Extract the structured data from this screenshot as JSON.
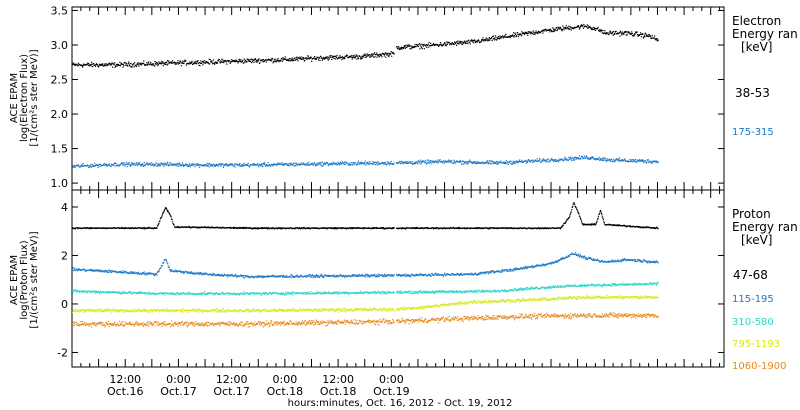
{
  "chart_data": [
    {
      "type": "scatter",
      "title": "",
      "ylabel_lines": [
        "ACE EPAM",
        "log(Electron Flux)",
        "[1/(cm²s ster MeV)]"
      ],
      "ylim": [
        0.9,
        3.55
      ],
      "yticks": [
        1.0,
        1.5,
        2.0,
        2.5,
        3.0,
        3.5
      ],
      "yticklabels": [
        "1.0",
        "1.5",
        "2.0",
        "2.5",
        "3.0",
        "3.5"
      ],
      "legend_title_lines": [
        "Electron",
        "Energy ran",
        "[keV]"
      ],
      "series": [
        {
          "name": "38-53",
          "color": "#000000",
          "noise": 0.05,
          "points": [
            [
              0,
              2.72
            ],
            [
              10,
              2.72
            ],
            [
              20,
              2.74
            ],
            [
              30,
              2.76
            ],
            [
              40,
              2.78
            ],
            [
              50,
              2.8
            ],
            [
              55,
              2.82
            ],
            [
              65,
              2.84
            ],
            [
              70,
              2.87
            ],
            [
              72.5,
              2.88
            ],
            [
              73,
              2.97
            ],
            [
              80,
              3.0
            ],
            [
              90,
              3.05
            ],
            [
              100,
              3.15
            ],
            [
              105,
              3.2
            ],
            [
              112,
              3.26
            ],
            [
              116,
              3.28
            ],
            [
              119,
              3.22
            ],
            [
              120,
              3.18
            ],
            [
              125,
              3.18
            ],
            [
              130,
              3.14
            ],
            [
              132,
              3.08
            ]
          ]
        },
        {
          "name": "175-315",
          "color": "#1a78c8",
          "noise": 0.04,
          "points": [
            [
              0,
              1.25
            ],
            [
              10,
              1.28
            ],
            [
              20,
              1.28
            ],
            [
              30,
              1.27
            ],
            [
              40,
              1.27
            ],
            [
              50,
              1.28
            ],
            [
              60,
              1.29
            ],
            [
              72.5,
              1.3
            ],
            [
              73,
              1.3
            ],
            [
              85,
              1.32
            ],
            [
              95,
              1.3
            ],
            [
              105,
              1.33
            ],
            [
              112,
              1.36
            ],
            [
              116,
              1.38
            ],
            [
              122,
              1.34
            ],
            [
              132,
              1.32
            ]
          ]
        }
      ]
    },
    {
      "type": "scatter",
      "title": "",
      "ylabel_lines": [
        "ACE EPAM",
        "log(Proton Flux)",
        "[1/(cm²s ster MeV)]"
      ],
      "ylim": [
        -2.6,
        4.7
      ],
      "yticks": [
        -2,
        0,
        2,
        4
      ],
      "yticklabels": [
        "-2",
        "0",
        "2",
        "4"
      ],
      "legend_title_lines": [
        "Proton",
        "Energy ran",
        "[keV]"
      ],
      "series": [
        {
          "name": "47-68",
          "color": "#000000",
          "noise": 0.04,
          "points": [
            [
              0,
              3.15
            ],
            [
              19,
              3.15
            ],
            [
              20,
              3.6
            ],
            [
              21,
              4.0
            ],
            [
              22,
              3.7
            ],
            [
              23,
              3.2
            ],
            [
              40,
              3.15
            ],
            [
              72.5,
              3.15
            ],
            [
              73,
              3.15
            ],
            [
              110,
              3.15
            ],
            [
              112,
              3.6
            ],
            [
              113,
              4.2
            ],
            [
              114,
              3.8
            ],
            [
              115,
              3.3
            ],
            [
              118,
              3.3
            ],
            [
              119,
              3.9
            ],
            [
              120,
              3.3
            ],
            [
              132,
              3.15
            ]
          ]
        },
        {
          "name": "115-195",
          "color": "#1a78c8",
          "noise": 0.08,
          "points": [
            [
              0,
              1.45
            ],
            [
              10,
              1.35
            ],
            [
              19,
              1.25
            ],
            [
              21,
              1.9
            ],
            [
              22,
              1.4
            ],
            [
              30,
              1.25
            ],
            [
              40,
              1.15
            ],
            [
              72.5,
              1.2
            ],
            [
              73,
              1.2
            ],
            [
              90,
              1.25
            ],
            [
              100,
              1.45
            ],
            [
              108,
              1.7
            ],
            [
              113,
              2.1
            ],
            [
              116,
              1.9
            ],
            [
              120,
              1.75
            ],
            [
              125,
              1.85
            ],
            [
              132,
              1.75
            ]
          ]
        },
        {
          "name": "310-580",
          "color": "#2dd5c8",
          "noise": 0.08,
          "points": [
            [
              0,
              0.55
            ],
            [
              20,
              0.45
            ],
            [
              40,
              0.45
            ],
            [
              72.5,
              0.5
            ],
            [
              73,
              0.5
            ],
            [
              95,
              0.55
            ],
            [
              110,
              0.75
            ],
            [
              118,
              0.8
            ],
            [
              132,
              0.85
            ]
          ]
        },
        {
          "name": "795-1193",
          "color": "#d8e81a",
          "noise": 0.1,
          "points": [
            [
              0,
              -0.25
            ],
            [
              20,
              -0.25
            ],
            [
              40,
              -0.25
            ],
            [
              72.5,
              -0.2
            ],
            [
              73,
              -0.2
            ],
            [
              80,
              -0.1
            ],
            [
              90,
              0.1
            ],
            [
              105,
              0.2
            ],
            [
              115,
              0.3
            ],
            [
              132,
              0.3
            ]
          ]
        },
        {
          "name": "1060-1900",
          "color": "#e8891a",
          "noise": 0.15,
          "points": [
            [
              0,
              -0.8
            ],
            [
              20,
              -0.8
            ],
            [
              40,
              -0.8
            ],
            [
              72.5,
              -0.7
            ],
            [
              73,
              -0.7
            ],
            [
              85,
              -0.6
            ],
            [
              100,
              -0.5
            ],
            [
              115,
              -0.45
            ],
            [
              132,
              -0.45
            ]
          ]
        }
      ]
    }
  ],
  "xlim": [
    0,
    147
  ],
  "xticks": [
    {
      "hours": 12,
      "time": "12:00",
      "date": "Oct.16"
    },
    {
      "hours": 24,
      "time": "0:00",
      "date": "Oct.17"
    },
    {
      "hours": 36,
      "time": "12:00",
      "date": "Oct.17"
    },
    {
      "hours": 48,
      "time": "0:00",
      "date": "Oct.18"
    },
    {
      "hours": 60,
      "time": "12:00",
      "date": "Oct.18"
    },
    {
      "hours": 72,
      "time": "0:00",
      "date": "Oct.19"
    }
  ],
  "xlabel": "hours:minutes, Oct. 16, 2012 - Oct. 19, 2012",
  "gap_hours": [
    72.5,
    73
  ]
}
